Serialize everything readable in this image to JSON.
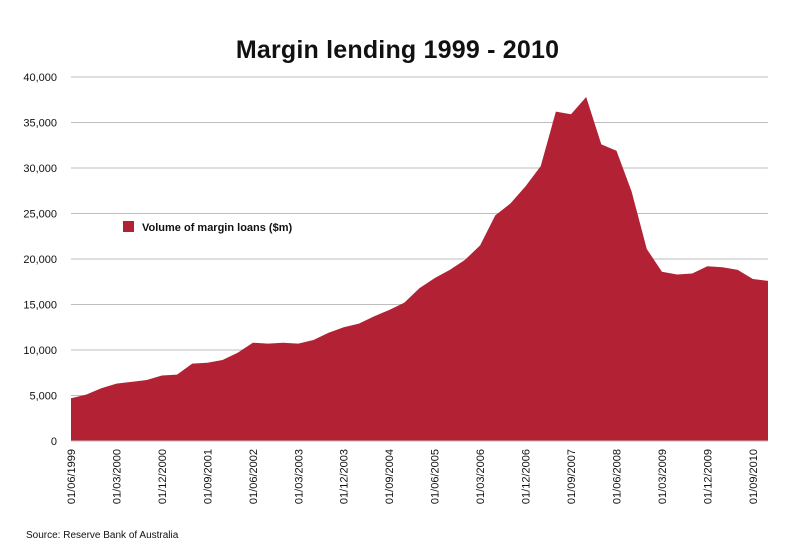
{
  "chart_data": {
    "type": "area",
    "title": "Margin lending 1999 - 2010",
    "xlabel": "",
    "ylabel": "",
    "ylim": [
      0,
      40000
    ],
    "yticks": [
      "0",
      "5,000",
      "10,000",
      "15,000",
      "20,000",
      "25,000",
      "30,000",
      "35,000",
      "40,000"
    ],
    "xtick_labels": [
      "01/06/1999",
      "01/03/2000",
      "01/12/2000",
      "01/09/2001",
      "01/06/2002",
      "01/03/2003",
      "01/12/2003",
      "01/09/2004",
      "01/06/2005",
      "01/03/2006",
      "01/12/2006",
      "01/09/2007",
      "01/06/2008",
      "01/03/2009",
      "01/12/2009",
      "01/09/2010"
    ],
    "grid": true,
    "legend_position": "left",
    "series": [
      {
        "name": "Volume of margin loans ($m)",
        "color": "#b22234",
        "values": [
          4700,
          5100,
          5800,
          6300,
          6500,
          6700,
          7200,
          7300,
          8500,
          8600,
          8900,
          9700,
          10800,
          10700,
          10800,
          10700,
          11100,
          11900,
          12500,
          12900,
          13700,
          14400,
          15200,
          16800,
          17900,
          18800,
          19900,
          21500,
          24800,
          26100,
          28000,
          30200,
          36200,
          35900,
          37800,
          32600,
          31900,
          27400,
          21100,
          18600,
          18300,
          18400,
          19200,
          19100,
          18800,
          17800,
          17600
        ]
      }
    ],
    "source": "Source: Reserve Bank of Australia"
  }
}
